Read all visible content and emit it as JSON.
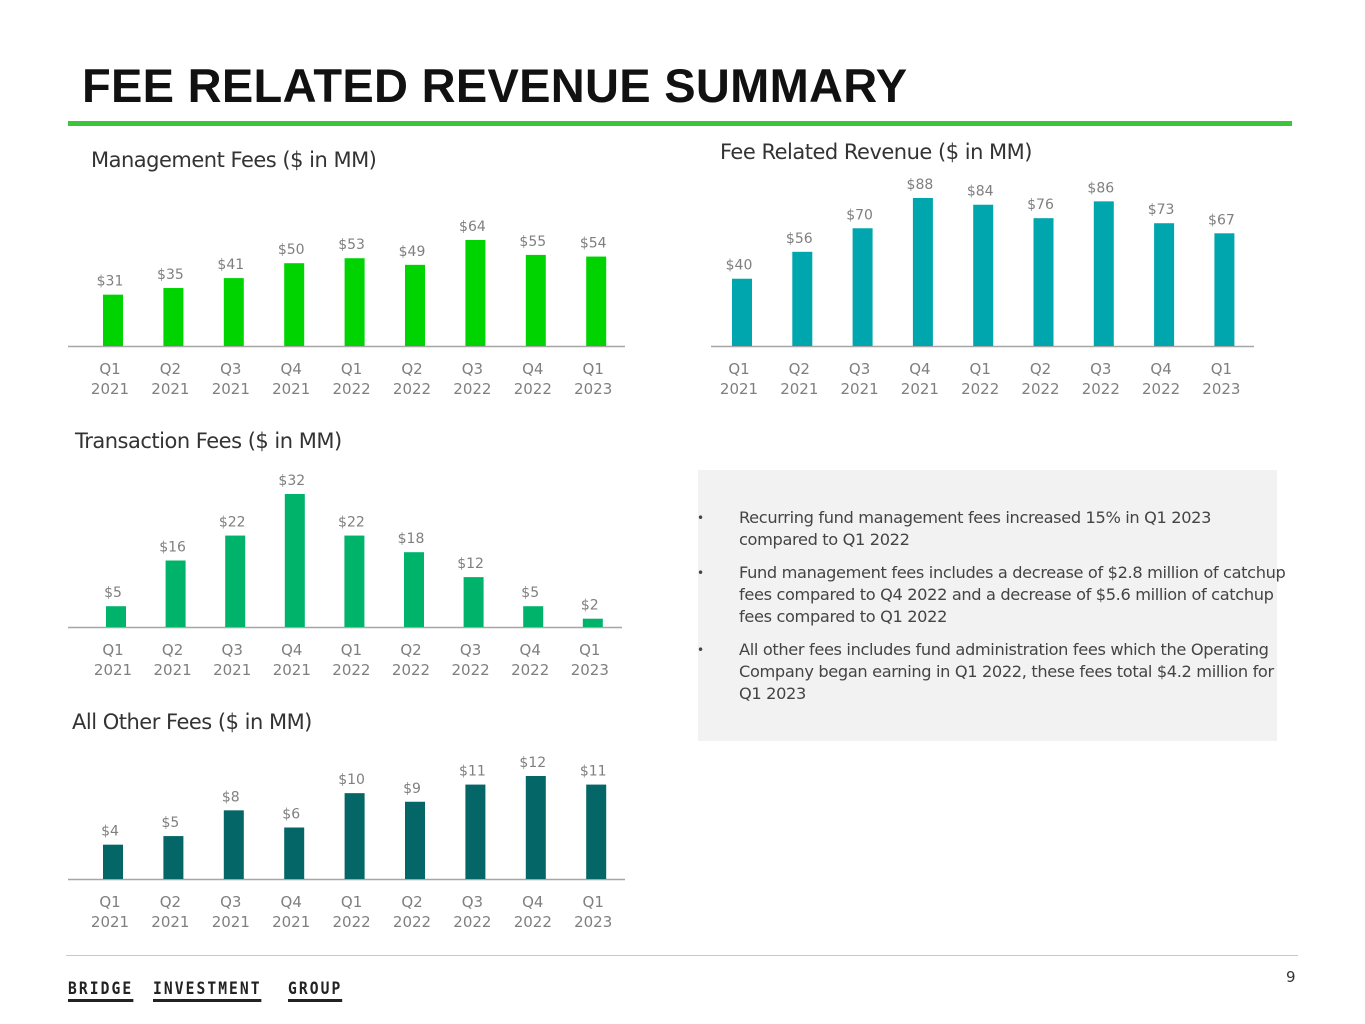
{
  "page": {
    "title": "FEE RELATED REVENUE SUMMARY",
    "page_number": "9",
    "logo_words": [
      "BRIDGE",
      "INVESTMENT",
      "GROUP"
    ],
    "colors": {
      "accent_rule": "#3cc43c",
      "management": "#00d400",
      "transaction": "#00b36b",
      "other": "#046666",
      "fee_related": "#00a6ad",
      "panel_bg": "#f2f2f2"
    }
  },
  "bullets": [
    "Recurring fund management fees increased 15% in Q1 2023 compared to Q1 2022",
    "Fund management fees includes a decrease of $2.8 million of catchup fees compared to Q4 2022 and a decrease of $5.6 million of catchup fees compared to Q1 2022",
    "All other fees includes fund administration fees which the Operating Company began earning in Q1 2022, these fees total $4.2 million for Q1 2023"
  ],
  "chart_data": [
    {
      "id": "management",
      "type": "bar",
      "title": "Management Fees ($ in MM)",
      "categories": [
        "Q1 2021",
        "Q2 2021",
        "Q3 2021",
        "Q4 2021",
        "Q1 2022",
        "Q2 2022",
        "Q3 2022",
        "Q4 2022",
        "Q1 2023"
      ],
      "values": [
        31,
        35,
        41,
        50,
        53,
        49,
        64,
        55,
        54
      ],
      "labels": [
        "$31",
        "$35",
        "$41",
        "$50",
        "$53",
        "$49",
        "$64",
        "$55",
        "$54"
      ],
      "color": "#00d400",
      "xlabel": "",
      "ylabel": "",
      "ylim": [
        0,
        64
      ],
      "grid": false,
      "legend": "none"
    },
    {
      "id": "fee_related",
      "type": "bar",
      "title": "Fee Related Revenue ($ in MM)",
      "categories": [
        "Q1 2021",
        "Q2 2021",
        "Q3 2021",
        "Q4 2021",
        "Q1 2022",
        "Q2 2022",
        "Q3 2022",
        "Q4 2022",
        "Q1 2023"
      ],
      "values": [
        40,
        56,
        70,
        88,
        84,
        76,
        86,
        73,
        67
      ],
      "labels": [
        "$40",
        "$56",
        "$70",
        "$88",
        "$84",
        "$76",
        "$86",
        "$73",
        "$67"
      ],
      "color": "#00a6ad",
      "xlabel": "",
      "ylabel": "",
      "ylim": [
        0,
        88
      ],
      "grid": false,
      "legend": "none"
    },
    {
      "id": "transaction",
      "type": "bar",
      "title": "Transaction Fees ($ in MM)",
      "categories": [
        "Q1 2021",
        "Q2 2021",
        "Q3 2021",
        "Q4 2021",
        "Q1 2022",
        "Q2 2022",
        "Q3 2022",
        "Q4 2022",
        "Q1 2023"
      ],
      "values": [
        5,
        16,
        22,
        32,
        22,
        18,
        12,
        5,
        2
      ],
      "labels": [
        "$5",
        "$16",
        "$22",
        "$32",
        "$22",
        "$18",
        "$12",
        "$5",
        "$2"
      ],
      "color": "#00b36b",
      "xlabel": "",
      "ylabel": "",
      "ylim": [
        0,
        32
      ],
      "grid": false,
      "legend": "none"
    },
    {
      "id": "other",
      "type": "bar",
      "title": "All Other Fees ($ in MM)",
      "categories": [
        "Q1 2021",
        "Q2 2021",
        "Q3 2021",
        "Q4 2021",
        "Q1 2022",
        "Q2 2022",
        "Q3 2022",
        "Q4 2022",
        "Q1 2023"
      ],
      "values": [
        4,
        5,
        8,
        6,
        10,
        9,
        11,
        12,
        11
      ],
      "labels": [
        "$4",
        "$5",
        "$8",
        "$6",
        "$10",
        "$9",
        "$11",
        "$12",
        "$11"
      ],
      "color": "#046666",
      "xlabel": "",
      "ylabel": "",
      "ylim": [
        0,
        12
      ],
      "grid": false,
      "legend": "none"
    }
  ]
}
